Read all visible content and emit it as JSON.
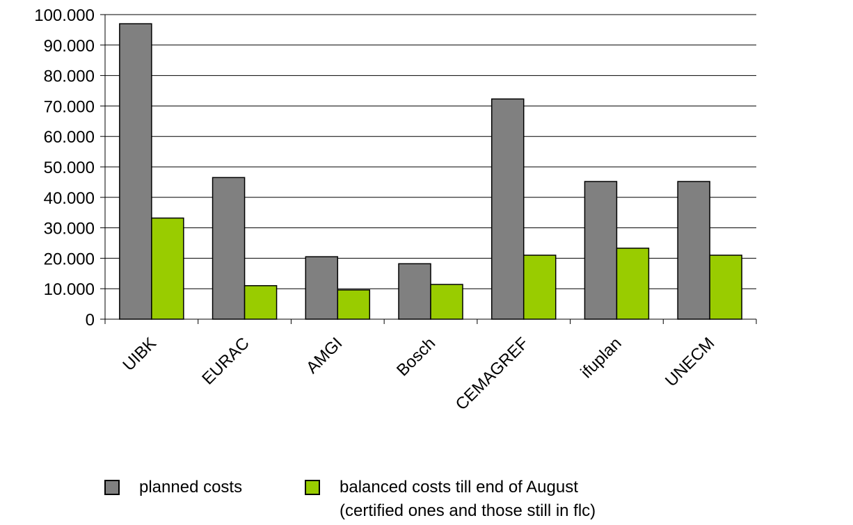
{
  "chart_data": {
    "type": "bar",
    "categories": [
      "UIBK",
      "EURAC",
      "AMGI",
      "Bosch",
      "CEMAGREF",
      "ifuplan",
      "UNECM"
    ],
    "series": [
      {
        "name": "planned costs",
        "values": [
          97000,
          46500,
          20500,
          18200,
          72300,
          45200,
          45200
        ],
        "color": "#808080"
      },
      {
        "name": "balanced costs till end of August (certified ones and those still in flc)",
        "values": [
          33200,
          11000,
          9600,
          11400,
          21000,
          23300,
          21000
        ],
        "color": "#99CC00"
      }
    ],
    "ylim": [
      0,
      100000
    ],
    "yticks": [
      0,
      10000,
      20000,
      30000,
      40000,
      50000,
      60000,
      70000,
      80000,
      90000,
      100000
    ],
    "ytick_labels": [
      "0",
      "10.000",
      "20.000",
      "30.000",
      "40.000",
      "50.000",
      "60.000",
      "70.000",
      "80.000",
      "90.000",
      "100.000"
    ],
    "title": "",
    "xlabel": "",
    "ylabel": "",
    "grid": true,
    "legend_position": "bottom",
    "legend": {
      "item1": "planned costs",
      "item2_line1": "balanced costs till end of August",
      "item2_line2": "(certified ones and those still in flc)"
    }
  }
}
